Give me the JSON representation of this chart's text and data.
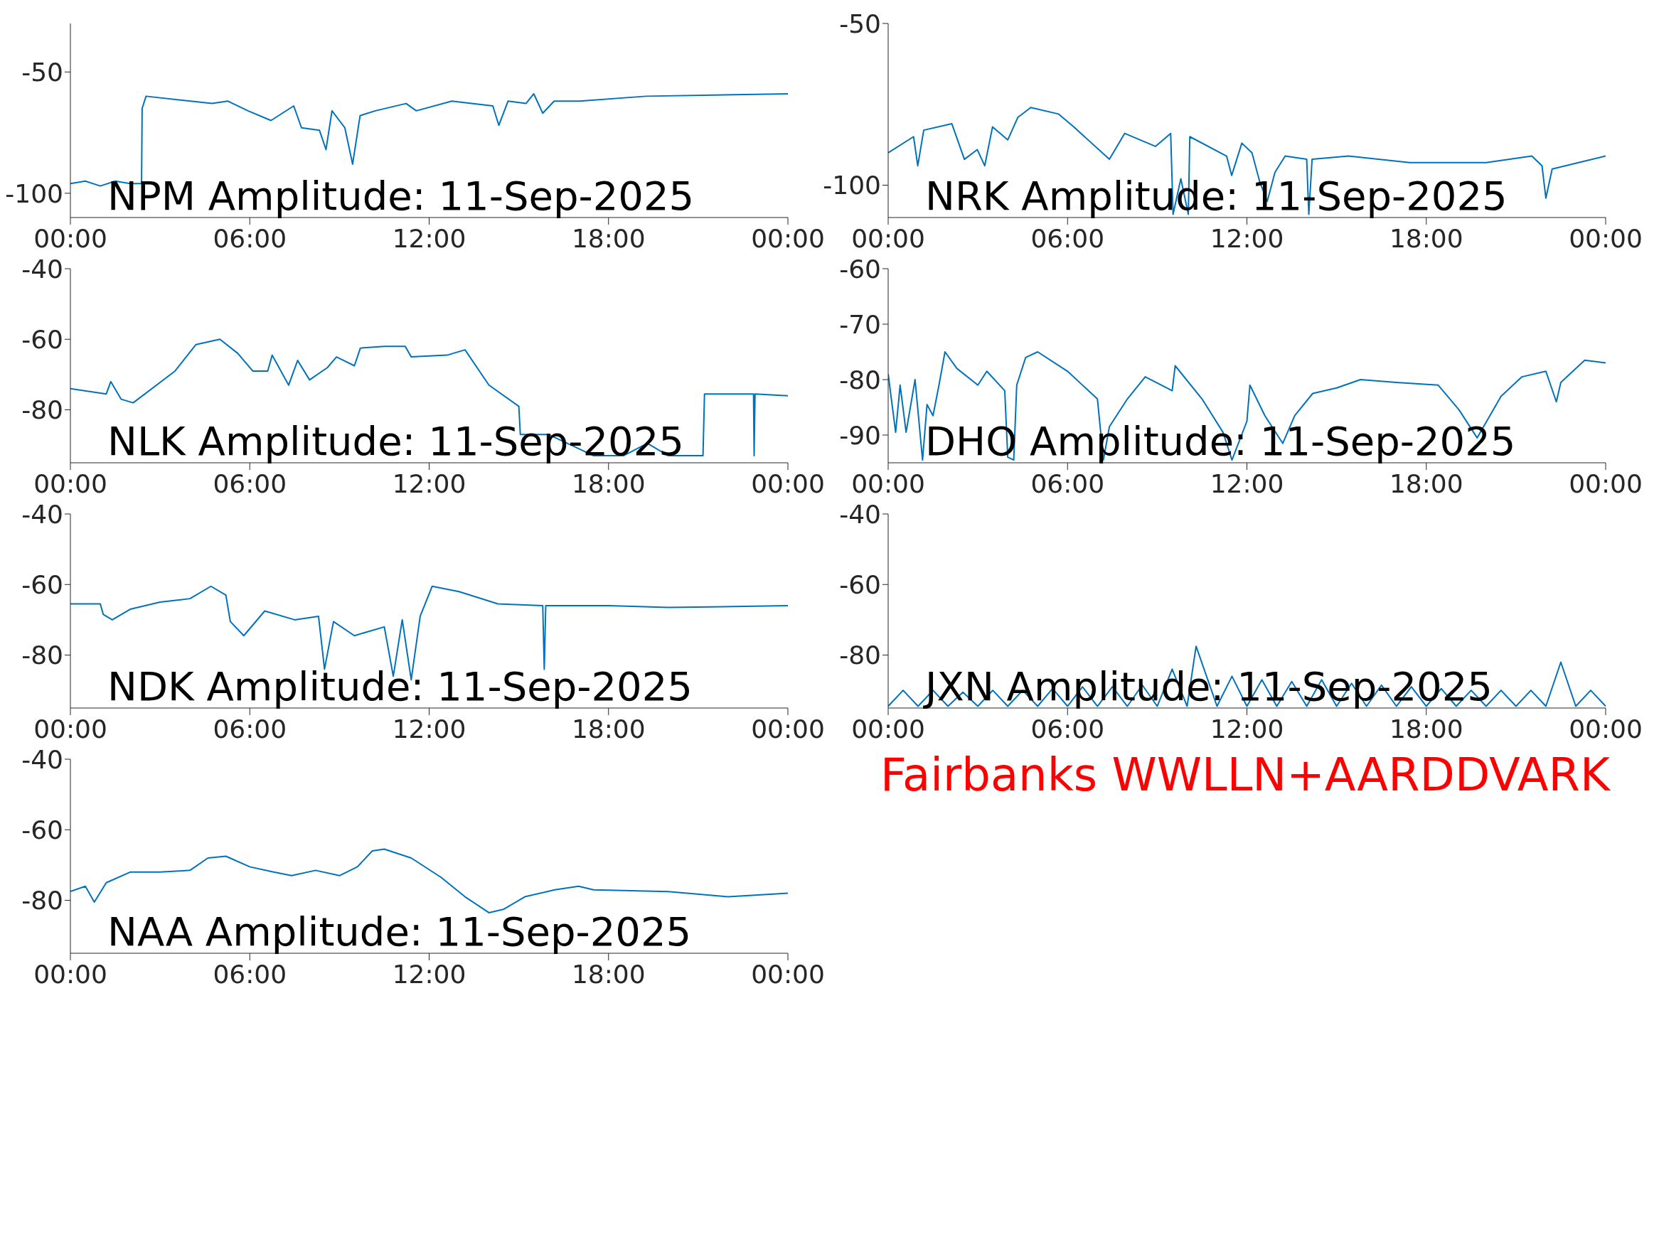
{
  "chart_data": [
    {
      "type": "line",
      "title": "NPM Amplitude: 11-Sep-2025",
      "x": [
        0,
        0.5,
        1,
        1.5,
        2,
        2.38,
        2.4,
        2.53,
        4.74,
        5.26,
        5.94,
        6.71,
        7.47,
        7.73,
        8.33,
        8.55,
        8.75,
        9.18,
        9.44,
        9.69,
        10.2,
        11.23,
        11.57,
        12.76,
        14.13,
        14.33,
        14.64,
        15.24,
        15.5,
        15.8,
        16.18,
        17.03,
        19.25,
        24
      ],
      "series": [
        {
          "color": "#0072bd",
          "values": [
            -96,
            -95,
            -97,
            -95,
            -96,
            -96,
            -65,
            -60,
            -63,
            -62,
            -66,
            -70,
            -64,
            -73,
            -74,
            -82,
            -66,
            -73,
            -88,
            -68,
            -66,
            -63,
            -66,
            -62,
            -64,
            -72,
            -62,
            -63,
            -59,
            -67,
            -62,
            -62,
            -60,
            -59
          ]
        }
      ],
      "xlim": [
        0,
        24
      ],
      "xticks": [
        {
          "value": 0,
          "label": "00:00"
        },
        {
          "value": 6,
          "label": "06:00"
        },
        {
          "value": 12,
          "label": "12:00"
        },
        {
          "value": 18,
          "label": "18:00"
        },
        {
          "value": 24,
          "label": "00:00"
        }
      ],
      "ylim": [
        -110,
        -30
      ],
      "yticks": [
        -100,
        -50
      ]
    },
    {
      "type": "line",
      "title": "NRK Amplitude: 11-Sep-2025",
      "x": [
        0,
        0.85,
        0.99,
        1.19,
        2.13,
        2.55,
        2.98,
        3.23,
        3.49,
        4.0,
        4.34,
        4.77,
        5.7,
        6.21,
        7.4,
        7.91,
        8.94,
        9.45,
        9.53,
        9.79,
        10.04,
        10.09,
        11.32,
        11.49,
        11.83,
        12.17,
        12.43,
        12.68,
        12.94,
        13.28,
        14.0,
        14.07,
        14.18,
        15.4,
        17.45,
        20,
        21.53,
        21.87,
        22.0,
        22.21,
        24
      ],
      "series": [
        {
          "color": "#0072bd",
          "values": [
            -90,
            -85,
            -94,
            -83,
            -81,
            -92,
            -89,
            -94,
            -82,
            -86,
            -79,
            -76,
            -78,
            -82,
            -92,
            -84,
            -88,
            -84,
            -109,
            -98,
            -109,
            -85,
            -91,
            -97,
            -87,
            -90,
            -99,
            -105,
            -96,
            -91,
            -92,
            -109,
            -92,
            -91,
            -93,
            -93,
            -91,
            -94,
            -104,
            -95,
            -91
          ]
        }
      ],
      "xlim": [
        0,
        24
      ],
      "xticks": [
        {
          "value": 0,
          "label": "00:00"
        },
        {
          "value": 6,
          "label": "06:00"
        },
        {
          "value": 12,
          "label": "12:00"
        },
        {
          "value": 18,
          "label": "18:00"
        },
        {
          "value": 24,
          "label": "00:00"
        }
      ],
      "ylim": [
        -110,
        -50
      ],
      "yticks": [
        -100,
        -50
      ]
    },
    {
      "type": "line",
      "title": "NLK Amplitude: 11-Sep-2025",
      "x": [
        0,
        1.2,
        1.35,
        1.7,
        2.1,
        3.5,
        4.2,
        5.0,
        5.6,
        6.1,
        6.6,
        6.75,
        7.3,
        7.6,
        8.0,
        8.6,
        8.9,
        9.5,
        9.7,
        10.5,
        11.2,
        11.4,
        12.6,
        13.2,
        14.0,
        15.0,
        15.05,
        16,
        17,
        17.5,
        18.5,
        19.3,
        20,
        21.16,
        21.21,
        22,
        22.85,
        22.87,
        22.9,
        24
      ],
      "series": [
        {
          "color": "#0072bd",
          "values": [
            -74,
            -75.5,
            -72,
            -77,
            -78,
            -69,
            -61.5,
            -60,
            -64,
            -69,
            -69,
            -64.5,
            -73,
            -66,
            -71.5,
            -68,
            -65,
            -67.5,
            -62.5,
            -62,
            -62,
            -65,
            -64.5,
            -63,
            -73,
            -79,
            -87,
            -87,
            -91,
            -93,
            -93,
            -89.5,
            -93,
            -93,
            -75.5,
            -75.5,
            -75.5,
            -93,
            -75.5,
            -76
          ]
        }
      ],
      "xlim": [
        0,
        24
      ],
      "xticks": [
        {
          "value": 0,
          "label": "00:00"
        },
        {
          "value": 6,
          "label": "06:00"
        },
        {
          "value": 12,
          "label": "12:00"
        },
        {
          "value": 18,
          "label": "18:00"
        },
        {
          "value": 24,
          "label": "00:00"
        }
      ],
      "ylim": [
        -95,
        -40
      ],
      "yticks": [
        -80,
        -60,
        -40
      ]
    },
    {
      "type": "line",
      "title": "DHO Amplitude: 11-Sep-2025",
      "x": [
        0,
        0.25,
        0.4,
        0.6,
        0.9,
        1.15,
        1.3,
        1.5,
        1.7,
        1.9,
        2.3,
        3.0,
        3.3,
        3.9,
        4.0,
        4.2,
        4.3,
        4.6,
        5.0,
        6.0,
        7.0,
        7.2,
        7.4,
        8.0,
        8.6,
        9.5,
        9.6,
        10.5,
        11.2,
        11.5,
        12.0,
        12.1,
        12.6,
        13.2,
        13.6,
        14.2,
        15.0,
        15.8,
        17,
        18.4,
        19.1,
        19.7,
        20.5,
        21.2,
        22.0,
        22.35,
        22.5,
        23.3,
        24
      ],
      "series": [
        {
          "color": "#0072bd",
          "values": [
            -79,
            -89.5,
            -81,
            -89.5,
            -80,
            -94.5,
            -84.5,
            -86.5,
            -81,
            -75,
            -78,
            -81,
            -78.5,
            -82,
            -94,
            -94.5,
            -81,
            -76,
            -75,
            -78.5,
            -83.5,
            -94.5,
            -88.5,
            -83.5,
            -79.5,
            -82,
            -77.5,
            -83.5,
            -89.5,
            -94.5,
            -87.5,
            -81,
            -86.5,
            -91.5,
            -86.5,
            -82.5,
            -81.5,
            -80,
            -80.5,
            -81,
            -85.5,
            -90.5,
            -83,
            -79.5,
            -78.5,
            -84,
            -80.5,
            -76.5,
            -77
          ]
        }
      ],
      "xlim": [
        0,
        24
      ],
      "xticks": [
        {
          "value": 0,
          "label": "00:00"
        },
        {
          "value": 6,
          "label": "06:00"
        },
        {
          "value": 12,
          "label": "12:00"
        },
        {
          "value": 18,
          "label": "18:00"
        },
        {
          "value": 24,
          "label": "00:00"
        }
      ],
      "ylim": [
        -95,
        -60
      ],
      "yticks": [
        -90,
        -80,
        -70,
        -60
      ]
    },
    {
      "type": "line",
      "title": "NDK Amplitude: 11-Sep-2025",
      "x": [
        0,
        1.0,
        1.1,
        1.4,
        2.0,
        3.0,
        4.0,
        4.7,
        5.2,
        5.35,
        5.8,
        6.5,
        7.5,
        8.3,
        8.5,
        8.8,
        9.5,
        10.5,
        10.8,
        11.1,
        11.4,
        11.7,
        12.1,
        13,
        14.3,
        15.8,
        15.85,
        15.9,
        18,
        20,
        24
      ],
      "series": [
        {
          "color": "#0072bd",
          "values": [
            -65.5,
            -65.5,
            -68.5,
            -70,
            -67,
            -65,
            -64,
            -60.5,
            -63,
            -70.5,
            -74.5,
            -67.5,
            -70,
            -69,
            -84,
            -70.5,
            -74.5,
            -72,
            -86,
            -70,
            -87,
            -69,
            -60.5,
            -62,
            -65.5,
            -66,
            -84,
            -66,
            -66,
            -66.5,
            -66
          ]
        }
      ],
      "xlim": [
        0,
        24
      ],
      "xticks": [
        {
          "value": 0,
          "label": "00:00"
        },
        {
          "value": 6,
          "label": "06:00"
        },
        {
          "value": 12,
          "label": "12:00"
        },
        {
          "value": 18,
          "label": "18:00"
        },
        {
          "value": 24,
          "label": "00:00"
        }
      ],
      "ylim": [
        -95,
        -40
      ],
      "yticks": [
        -80,
        -60,
        -40
      ]
    },
    {
      "type": "line",
      "title": "JXN Amplitude: 11-Sep-2025",
      "x": [
        0,
        0.5,
        1,
        1.5,
        2,
        2.5,
        3,
        3.5,
        4,
        4.5,
        5,
        5.5,
        6,
        6.5,
        7,
        7.5,
        8,
        8.5,
        9,
        9.5,
        10,
        10.3,
        11,
        11.5,
        12,
        12.5,
        13,
        13.5,
        14,
        14.5,
        15,
        15.5,
        16,
        16.5,
        17,
        17.5,
        18,
        18.5,
        19,
        19.5,
        20,
        20.5,
        21,
        21.5,
        22,
        22.5,
        23,
        23.5,
        24
      ],
      "series": [
        {
          "color": "#0072bd",
          "values": [
            -94.5,
            -90,
            -94.5,
            -90,
            -94.5,
            -90.5,
            -94.5,
            -90,
            -94.5,
            -90,
            -94.5,
            -89.5,
            -94.5,
            -89,
            -94.5,
            -89,
            -94.5,
            -88.5,
            -94.5,
            -84,
            -94.5,
            -77.5,
            -94.5,
            -86,
            -94.5,
            -87,
            -94.5,
            -87.5,
            -94.5,
            -87,
            -94.5,
            -88,
            -94.5,
            -88.5,
            -94.5,
            -89,
            -94.5,
            -89.5,
            -94.5,
            -90,
            -94.5,
            -90,
            -94.5,
            -90,
            -94.5,
            -82,
            -94.5,
            -90,
            -94.5
          ]
        }
      ],
      "xlim": [
        0,
        24
      ],
      "xticks": [
        {
          "value": 0,
          "label": "00:00"
        },
        {
          "value": 6,
          "label": "06:00"
        },
        {
          "value": 12,
          "label": "12:00"
        },
        {
          "value": 18,
          "label": "18:00"
        },
        {
          "value": 24,
          "label": "00:00"
        }
      ],
      "ylim": [
        -95,
        -40
      ],
      "yticks": [
        -80,
        -60,
        -40
      ]
    },
    {
      "type": "line",
      "title": "NAA Amplitude: 11-Sep-2025",
      "x": [
        0,
        0.5,
        0.8,
        1.2,
        2.0,
        3.0,
        4.0,
        4.6,
        5.2,
        6.0,
        6.8,
        7.4,
        8.2,
        9.0,
        9.6,
        10.1,
        10.5,
        11.4,
        12.4,
        13.2,
        14.0,
        14.5,
        15.2,
        16.2,
        17.0,
        17.5,
        20,
        22,
        23,
        24
      ],
      "series": [
        {
          "color": "#0072bd",
          "values": [
            -77.5,
            -76,
            -80.5,
            -75,
            -72,
            -72,
            -71.5,
            -68,
            -67.5,
            -70.5,
            -72,
            -73,
            -71.5,
            -73,
            -70.5,
            -66,
            -65.5,
            -68,
            -73.5,
            -79,
            -83.5,
            -82.5,
            -79,
            -77,
            -76,
            -77,
            -77.5,
            -79,
            -78.5,
            -78
          ]
        }
      ],
      "xlim": [
        0,
        24
      ],
      "xticks": [
        {
          "value": 0,
          "label": "00:00"
        },
        {
          "value": 6,
          "label": "06:00"
        },
        {
          "value": 12,
          "label": "12:00"
        },
        {
          "value": 18,
          "label": "18:00"
        },
        {
          "value": 24,
          "label": "00:00"
        }
      ],
      "ylim": [
        -95,
        -40
      ],
      "yticks": [
        -80,
        -60,
        -40
      ]
    },
    {
      "type": "other",
      "annotations": [
        "Fairbanks WWLLN+AARDDVARK"
      ]
    }
  ]
}
